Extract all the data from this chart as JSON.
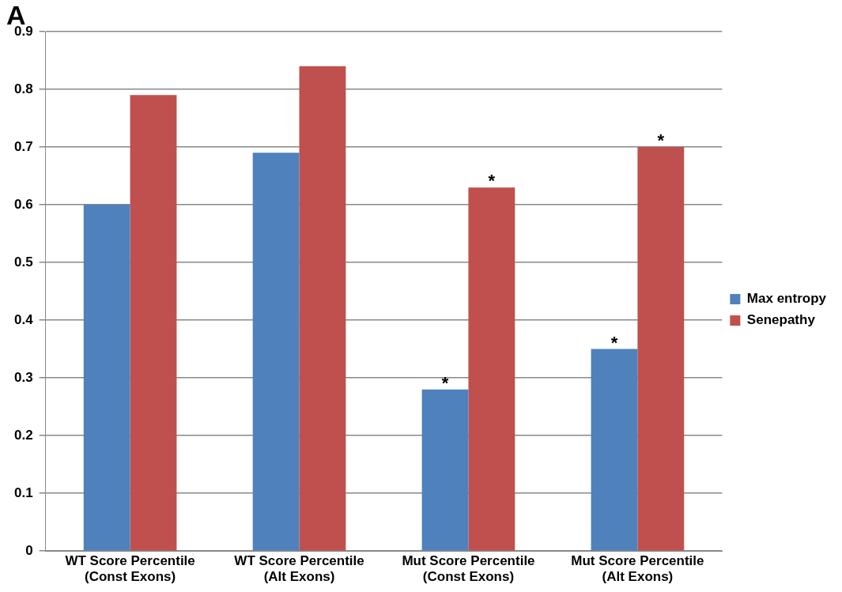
{
  "chart_data": {
    "type": "bar",
    "categories": [
      "WT Score Percentile\n(Const Exons)",
      "WT Score Percentile\n(Alt Exons)",
      "Mut Score Percentile\n(Const Exons)",
      "Mut Score Percentile\n(Alt Exons)"
    ],
    "series": [
      {
        "name": "Max entropy",
        "color": "#4f81bd",
        "values": [
          0.6,
          0.69,
          0.28,
          0.35
        ]
      },
      {
        "name": "Senepathy",
        "color": "#c0504d",
        "values": [
          0.79,
          0.84,
          0.63,
          0.7
        ]
      }
    ],
    "ylim": [
      0,
      0.9
    ],
    "yticks": [
      0,
      0.1,
      0.2,
      0.3,
      0.4,
      0.5,
      0.6,
      0.7,
      0.8,
      0.9
    ],
    "grid": "y",
    "legend": "right",
    "annotations": [
      "A",
      {
        "text": "*",
        "x": "Mut Score Percentile\n(Const Exons)",
        "y": 0.28
      },
      {
        "text": "*",
        "x": "Mut Score Percentile\n(Const Exons)",
        "y": 0.63
      },
      {
        "text": "*",
        "x": "Mut Score Percentile\n(Alt Exons)",
        "y": 0.35
      },
      {
        "text": "*",
        "x": "Mut Score Percentile\n(Alt Exons)",
        "y": 0.7
      }
    ]
  }
}
